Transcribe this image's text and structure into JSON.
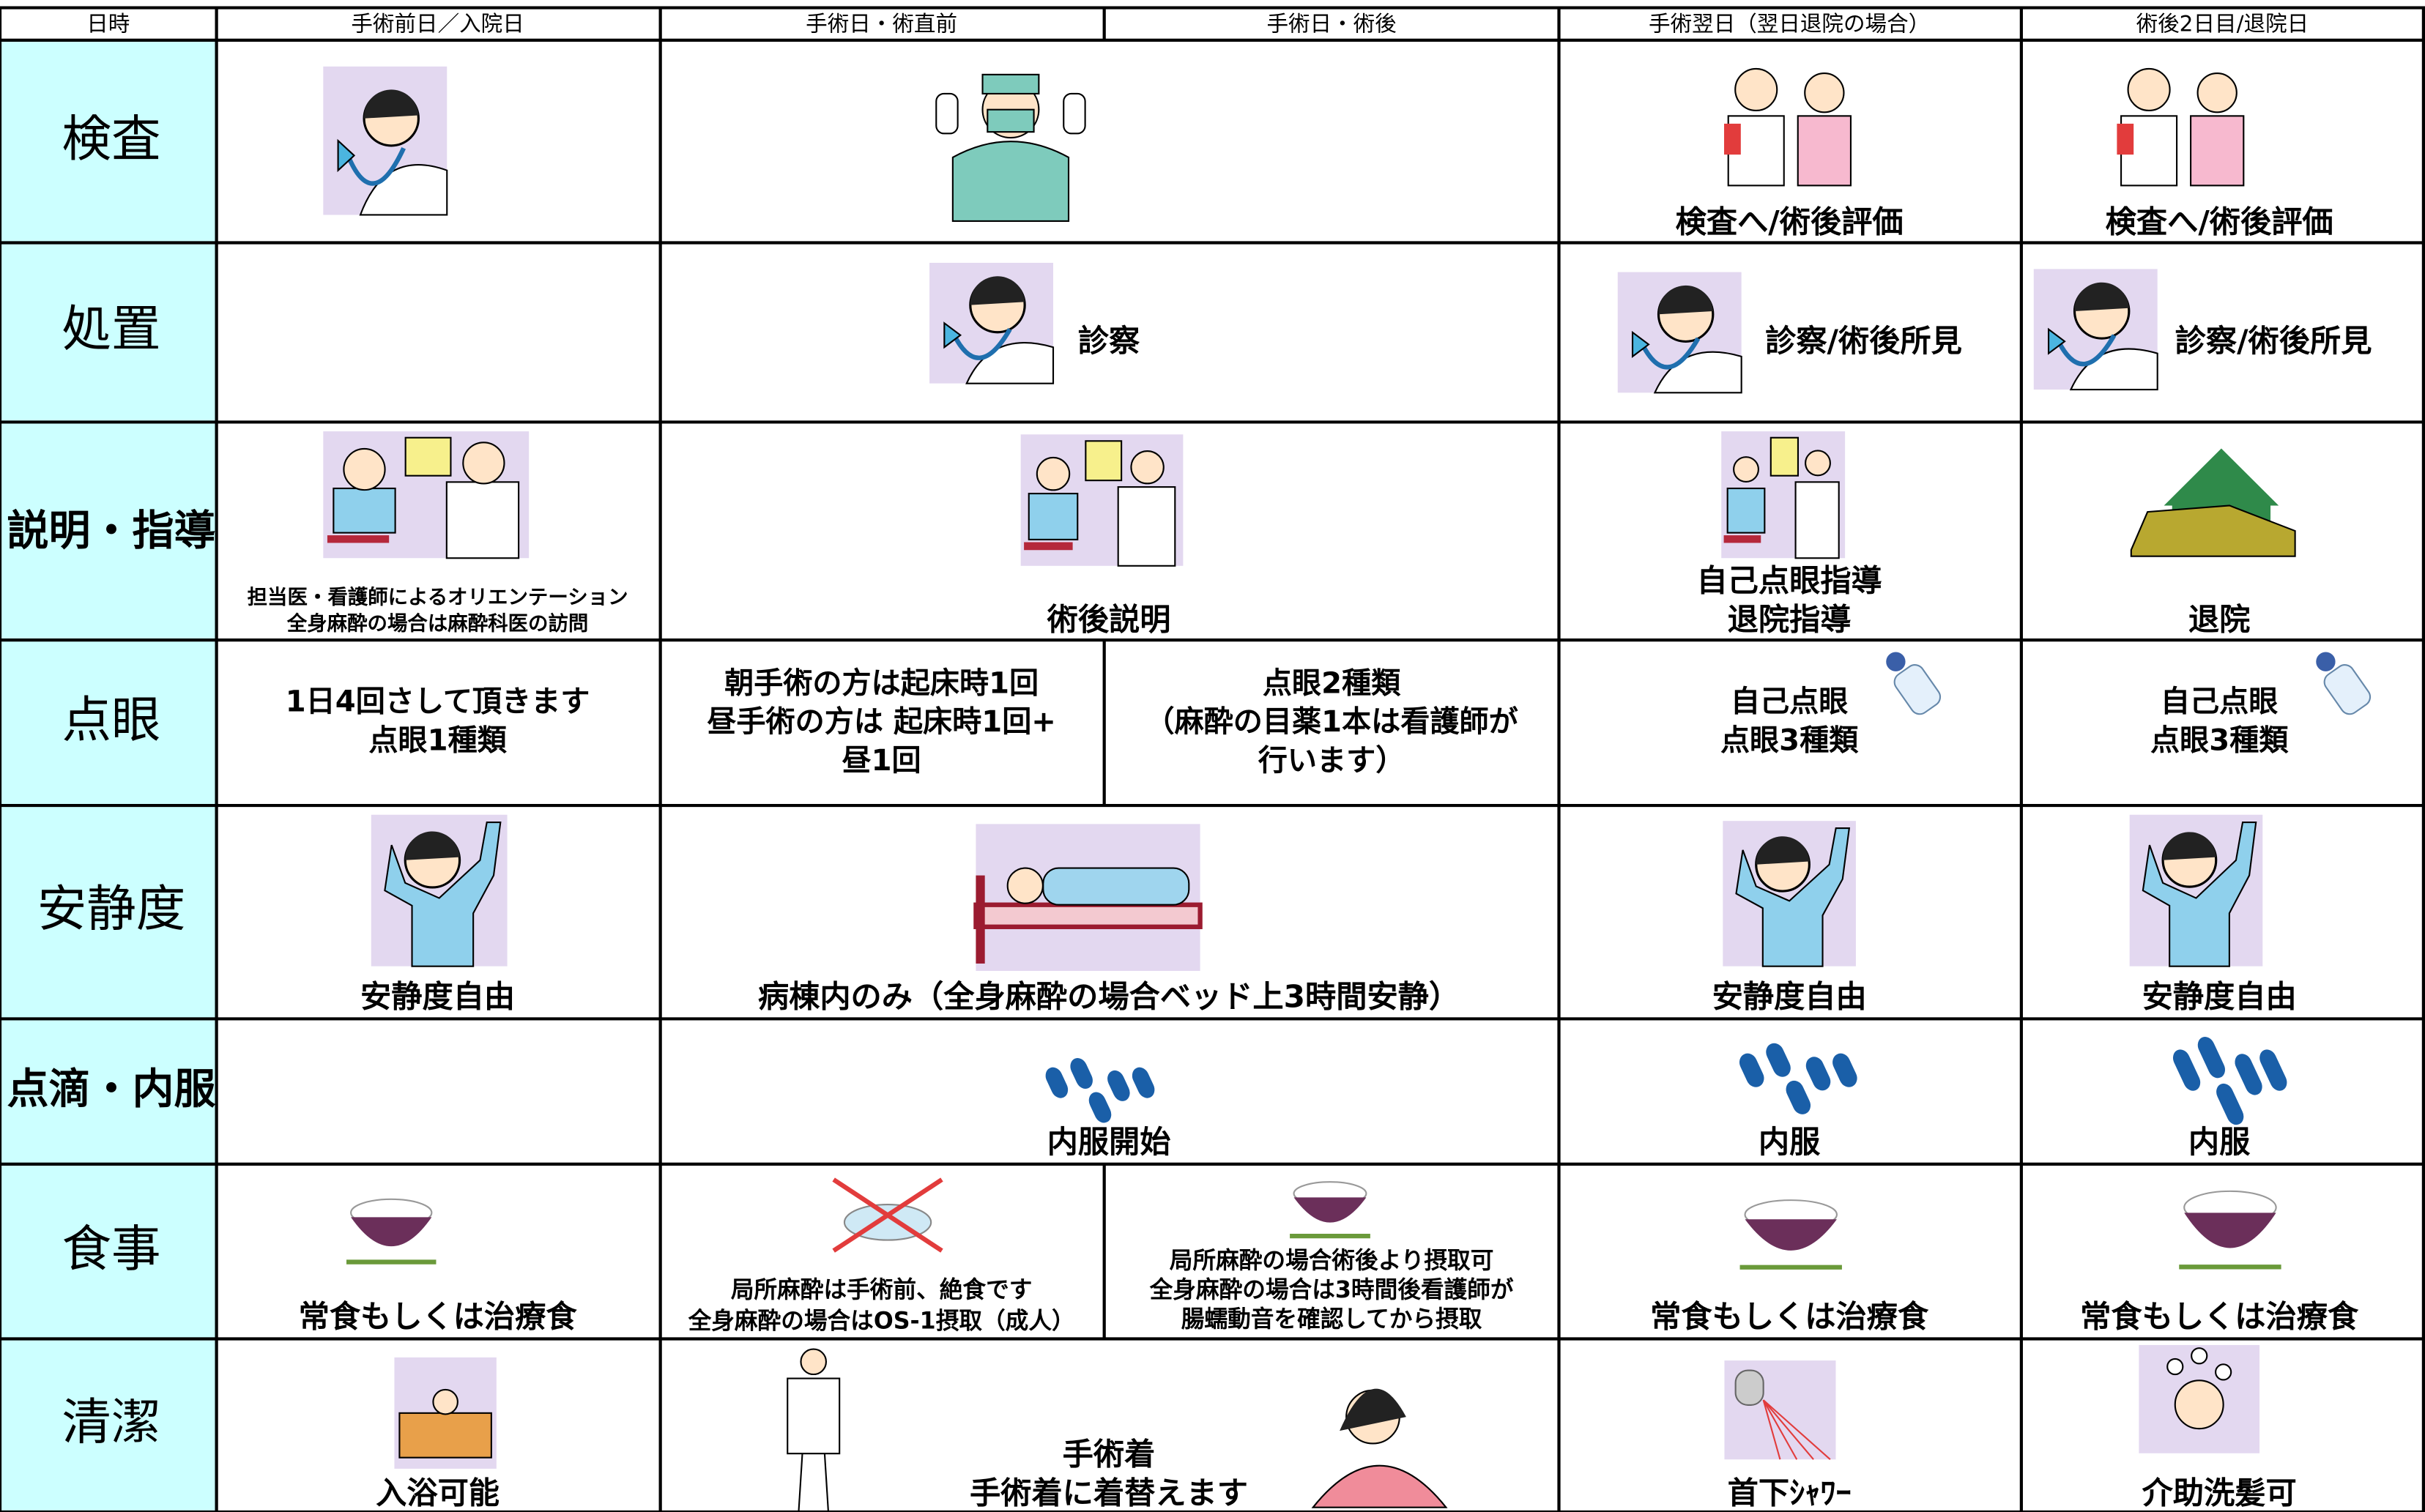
{
  "header": [
    "日時",
    "手術前日／入院日",
    "手術日・術直前",
    "手術日・術後",
    "手術翌日（翌日退院の場合）",
    "術後2日目/退院日"
  ],
  "rows": [
    {
      "label": "検査",
      "cells": [
        [
          "検査へ/術後評価"
        ],
        [
          "検査へ/術後評価"
        ]
      ]
    },
    {
      "label": "処置",
      "cells": [
        [
          "診察"
        ],
        [
          "診察/術後所見"
        ],
        [
          "診察/術後所見"
        ]
      ]
    },
    {
      "label": "説明・指導",
      "cells": [
        [
          "担当医・看護師によるオリエンテーション",
          "全身麻酔の場合は麻酔科医の訪問"
        ],
        [
          "術後説明"
        ],
        [
          "自己点眼指導",
          "退院指導"
        ],
        [
          "退院"
        ]
      ]
    },
    {
      "label": "点眼",
      "cells": [
        [
          "1日4回さして頂きます",
          "点眼1種類"
        ],
        [
          "朝手術の方は起床時1回",
          "昼手術の方は 起床時1回+",
          "昼1回"
        ],
        [
          "点眼2種類",
          "（麻酔の目薬1本は看護師が",
          "行います）"
        ],
        [
          "自己点眼",
          "点眼3種類"
        ],
        [
          "自己点眼",
          "点眼3種類"
        ]
      ]
    },
    {
      "label": "安静度",
      "cells": [
        [
          "安静度自由"
        ],
        [
          "病棟内のみ（全身麻酔の場合ベッド上3時間安静）"
        ],
        [
          "安静度自由"
        ],
        [
          "安静度自由"
        ]
      ]
    },
    {
      "label": "点滴・内服",
      "cells": [
        [
          "内服開始"
        ],
        [
          "内服"
        ],
        [
          "内服"
        ]
      ]
    },
    {
      "label": "食事",
      "cells": [
        [
          "常食もしくは治療食"
        ],
        [
          "局所麻酔は手術前、絶食です",
          "全身麻酔の場合はOS-1摂取（成人）"
        ],
        [
          "局所麻酔の場合術後より摂取可",
          "全身麻酔の場合は3時間後看護師が",
          "腸蠕動音を確認してから摂取"
        ],
        [
          "常食もしくは治療食"
        ],
        [
          "常食もしくは治療食"
        ]
      ]
    },
    {
      "label": "清潔",
      "cells": [
        [
          "入浴可能"
        ],
        [
          "手術着",
          "手術着に着替えます"
        ],
        [
          "首下ｼｬﾜｰ"
        ],
        [
          "介助洗髪可"
        ]
      ]
    }
  ]
}
